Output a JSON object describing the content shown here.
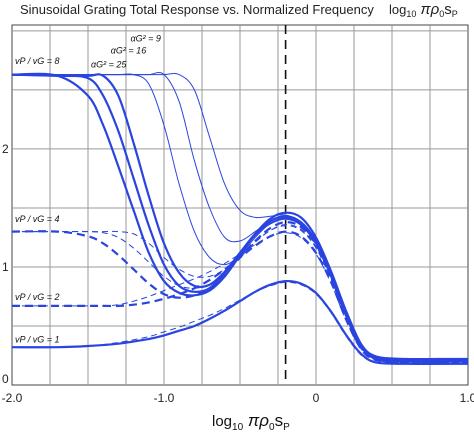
{
  "chart_data": {
    "type": "line",
    "title": "Sinusoidal Grating Total Response vs. Normalized Frequency",
    "title_right": "log10 πρ₀sP",
    "xlabel": "log10 πρ₀sP",
    "ylabel": "",
    "xlim": [
      -2.0,
      1.0
    ],
    "ylim": [
      0,
      3.05
    ],
    "x_ticks": [
      "-2.0",
      "-1.0",
      "0",
      "1.0"
    ],
    "y_ticks": [
      "0",
      "1",
      "2"
    ],
    "grid": true,
    "reference_line_x": -0.2,
    "color": "#2a44e0",
    "annotations": [
      {
        "text": "vP / vG = 8",
        "x": -1.98,
        "y": 2.72
      },
      {
        "text": "vP / vG = 4",
        "x": -1.98,
        "y": 1.38
      },
      {
        "text": "vP / vG = 2",
        "x": -1.98,
        "y": 0.72
      },
      {
        "text": "vP / vG = 1",
        "x": -1.98,
        "y": 0.36
      },
      {
        "text": "αG² = 9",
        "x": -1.22,
        "y": 2.91
      },
      {
        "text": "αG² = 16",
        "x": -1.35,
        "y": 2.81
      },
      {
        "text": "αG² = 25",
        "x": -1.48,
        "y": 2.69
      }
    ],
    "series": [
      {
        "style": "solid-thick",
        "x": [
          -2.0,
          -1.7,
          -1.5,
          -1.4,
          -1.3,
          -1.2,
          -1.1,
          -1.0,
          -0.9,
          -0.8,
          -0.7,
          -0.6,
          -0.5,
          -0.4,
          -0.3,
          -0.2,
          -0.1,
          0.0,
          0.1,
          0.2,
          0.3,
          0.4,
          0.6,
          0.8,
          1.0
        ],
        "y": [
          2.63,
          2.62,
          2.45,
          2.2,
          1.85,
          1.48,
          1.12,
          0.88,
          0.78,
          0.76,
          0.8,
          0.92,
          1.1,
          1.28,
          1.41,
          1.46,
          1.42,
          1.25,
          0.96,
          0.62,
          0.34,
          0.24,
          0.22,
          0.22,
          0.22
        ]
      },
      {
        "style": "solid-thick",
        "x": [
          -2.0,
          -1.7,
          -1.5,
          -1.4,
          -1.3,
          -1.2,
          -1.1,
          -1.0,
          -0.9,
          -0.8,
          -0.7,
          -0.6,
          -0.5,
          -0.4,
          -0.3,
          -0.2,
          -0.1,
          0.0,
          0.1,
          0.2,
          0.3,
          0.4,
          0.6,
          0.8,
          1.0
        ],
        "y": [
          2.63,
          2.62,
          2.6,
          2.45,
          2.15,
          1.75,
          1.35,
          1.02,
          0.84,
          0.79,
          0.82,
          0.95,
          1.12,
          1.28,
          1.39,
          1.43,
          1.38,
          1.22,
          0.94,
          0.6,
          0.33,
          0.23,
          0.21,
          0.21,
          0.21
        ]
      },
      {
        "style": "solid-thick",
        "x": [
          -2.0,
          -1.7,
          -1.5,
          -1.4,
          -1.3,
          -1.2,
          -1.1,
          -1.0,
          -0.9,
          -0.8,
          -0.7,
          -0.6,
          -0.5,
          -0.4,
          -0.3,
          -0.2,
          -0.1,
          0.0,
          0.1,
          0.2,
          0.3,
          0.4,
          0.6,
          0.8,
          1.0
        ],
        "y": [
          2.63,
          2.62,
          2.62,
          2.62,
          2.45,
          2.05,
          1.6,
          1.2,
          0.95,
          0.84,
          0.85,
          0.96,
          1.12,
          1.27,
          1.37,
          1.41,
          1.36,
          1.2,
          0.92,
          0.58,
          0.32,
          0.22,
          0.2,
          0.2,
          0.2
        ]
      },
      {
        "style": "solid-thin",
        "x": [
          -2.0,
          -1.5,
          -1.3,
          -1.2,
          -1.1,
          -1.0,
          -0.9,
          -0.8,
          -0.7,
          -0.6,
          -0.5,
          -0.4,
          -0.3,
          -0.2,
          -0.1,
          0.0,
          0.1,
          0.2,
          0.3,
          0.4,
          0.6,
          1.0
        ],
        "y": [
          2.63,
          2.63,
          2.63,
          2.63,
          2.55,
          2.2,
          1.7,
          1.3,
          1.08,
          1.02,
          1.1,
          1.25,
          1.37,
          1.41,
          1.36,
          1.2,
          0.92,
          0.58,
          0.32,
          0.22,
          0.2,
          0.2
        ]
      },
      {
        "style": "solid-thin",
        "x": [
          -2.0,
          -1.5,
          -1.3,
          -1.2,
          -1.1,
          -1.0,
          -0.9,
          -0.8,
          -0.7,
          -0.6,
          -0.5,
          -0.4,
          -0.3,
          -0.2,
          -0.1,
          0.0,
          0.1,
          0.2,
          0.3,
          0.4,
          0.6,
          1.0
        ],
        "y": [
          2.63,
          2.63,
          2.63,
          2.63,
          2.63,
          2.63,
          2.4,
          1.9,
          1.5,
          1.25,
          1.22,
          1.3,
          1.39,
          1.42,
          1.37,
          1.21,
          0.93,
          0.59,
          0.33,
          0.23,
          0.21,
          0.21
        ]
      },
      {
        "style": "solid-thin",
        "x": [
          -2.0,
          -1.5,
          -1.3,
          -1.2,
          -1.1,
          -1.0,
          -0.9,
          -0.8,
          -0.7,
          -0.6,
          -0.5,
          -0.4,
          -0.3,
          -0.2,
          -0.1,
          0.0,
          0.1,
          0.2,
          0.3,
          0.4,
          0.6,
          1.0
        ],
        "y": [
          2.63,
          2.63,
          2.63,
          2.63,
          2.63,
          2.63,
          2.63,
          2.5,
          2.1,
          1.7,
          1.48,
          1.42,
          1.43,
          1.44,
          1.38,
          1.22,
          0.94,
          0.6,
          0.34,
          0.24,
          0.22,
          0.22
        ]
      },
      {
        "style": "dashed-thick",
        "x": [
          -2.0,
          -1.7,
          -1.5,
          -1.4,
          -1.3,
          -1.2,
          -1.1,
          -1.0,
          -0.9,
          -0.8,
          -0.7,
          -0.6,
          -0.5,
          -0.4,
          -0.3,
          -0.2,
          -0.1,
          0.0,
          0.1,
          0.2,
          0.3,
          0.4,
          0.6,
          1.0
        ],
        "y": [
          1.3,
          1.3,
          1.26,
          1.2,
          1.1,
          0.98,
          0.86,
          0.77,
          0.74,
          0.76,
          0.82,
          0.94,
          1.08,
          1.22,
          1.33,
          1.38,
          1.34,
          1.19,
          0.92,
          0.58,
          0.32,
          0.22,
          0.2,
          0.2
        ]
      },
      {
        "style": "dashed-thin",
        "x": [
          -2.0,
          -1.7,
          -1.5,
          -1.4,
          -1.3,
          -1.2,
          -1.1,
          -1.0,
          -0.9,
          -0.8,
          -0.7,
          -0.6,
          -0.5,
          -0.4,
          -0.3,
          -0.2,
          -0.1,
          0.0,
          0.1,
          0.2,
          0.3,
          0.4,
          0.6,
          1.0
        ],
        "y": [
          1.3,
          1.3,
          1.3,
          1.29,
          1.25,
          1.16,
          1.04,
          0.92,
          0.84,
          0.82,
          0.85,
          0.95,
          1.08,
          1.21,
          1.31,
          1.36,
          1.32,
          1.17,
          0.9,
          0.57,
          0.31,
          0.22,
          0.2,
          0.2
        ]
      },
      {
        "style": "dashed-thin",
        "x": [
          -2.0,
          -1.7,
          -1.5,
          -1.4,
          -1.3,
          -1.2,
          -1.1,
          -1.0,
          -0.9,
          -0.8,
          -0.7,
          -0.6,
          -0.5,
          -0.4,
          -0.3,
          -0.2,
          -0.1,
          0.0,
          0.1,
          0.2,
          0.3,
          0.4,
          0.6,
          1.0
        ],
        "y": [
          1.3,
          1.3,
          1.3,
          1.3,
          1.3,
          1.28,
          1.2,
          1.08,
          0.98,
          0.92,
          0.92,
          0.98,
          1.09,
          1.21,
          1.31,
          1.35,
          1.31,
          1.16,
          0.89,
          0.56,
          0.31,
          0.21,
          0.19,
          0.19
        ]
      },
      {
        "style": "dashed-thick",
        "x": [
          -2.0,
          -1.7,
          -1.5,
          -1.4,
          -1.3,
          -1.2,
          -1.1,
          -1.0,
          -0.9,
          -0.8,
          -0.7,
          -0.6,
          -0.5,
          -0.4,
          -0.3,
          -0.2,
          -0.1,
          0.0,
          0.1,
          0.2,
          0.3,
          0.4,
          0.6,
          1.0
        ],
        "y": [
          0.67,
          0.67,
          0.67,
          0.67,
          0.67,
          0.68,
          0.7,
          0.73,
          0.77,
          0.82,
          0.89,
          0.98,
          1.08,
          1.18,
          1.26,
          1.3,
          1.26,
          1.12,
          0.87,
          0.55,
          0.3,
          0.21,
          0.19,
          0.19
        ]
      },
      {
        "style": "dashed-thin",
        "x": [
          -2.0,
          -1.7,
          -1.5,
          -1.4,
          -1.3,
          -1.2,
          -1.1,
          -1.0,
          -0.9,
          -0.8,
          -0.7,
          -0.6,
          -0.5,
          -0.4,
          -0.3,
          -0.2,
          -0.1,
          0.0,
          0.1,
          0.2,
          0.3,
          0.4,
          0.6,
          1.0
        ],
        "y": [
          0.67,
          0.67,
          0.67,
          0.67,
          0.68,
          0.71,
          0.75,
          0.8,
          0.85,
          0.9,
          0.96,
          1.03,
          1.11,
          1.19,
          1.26,
          1.29,
          1.25,
          1.11,
          0.86,
          0.54,
          0.3,
          0.21,
          0.19,
          0.19
        ]
      },
      {
        "style": "solid-thick",
        "x": [
          -2.0,
          -1.7,
          -1.5,
          -1.3,
          -1.1,
          -1.0,
          -0.9,
          -0.8,
          -0.7,
          -0.6,
          -0.5,
          -0.4,
          -0.3,
          -0.2,
          -0.1,
          0.0,
          0.1,
          0.2,
          0.3,
          0.4,
          0.6,
          1.0
        ],
        "y": [
          0.32,
          0.32,
          0.33,
          0.35,
          0.39,
          0.42,
          0.46,
          0.5,
          0.56,
          0.63,
          0.71,
          0.79,
          0.85,
          0.88,
          0.86,
          0.78,
          0.62,
          0.42,
          0.26,
          0.19,
          0.18,
          0.18
        ]
      },
      {
        "style": "dashed-thin",
        "x": [
          -2.0,
          -1.7,
          -1.5,
          -1.3,
          -1.1,
          -1.0,
          -0.9,
          -0.8,
          -0.7,
          -0.6,
          -0.5,
          -0.4,
          -0.3,
          -0.2,
          -0.1,
          0.0,
          0.1,
          0.2,
          0.3,
          0.4,
          0.6,
          1.0
        ],
        "y": [
          0.32,
          0.32,
          0.33,
          0.36,
          0.41,
          0.45,
          0.49,
          0.54,
          0.59,
          0.65,
          0.72,
          0.79,
          0.84,
          0.87,
          0.85,
          0.77,
          0.61,
          0.41,
          0.25,
          0.19,
          0.18,
          0.18
        ]
      }
    ]
  }
}
